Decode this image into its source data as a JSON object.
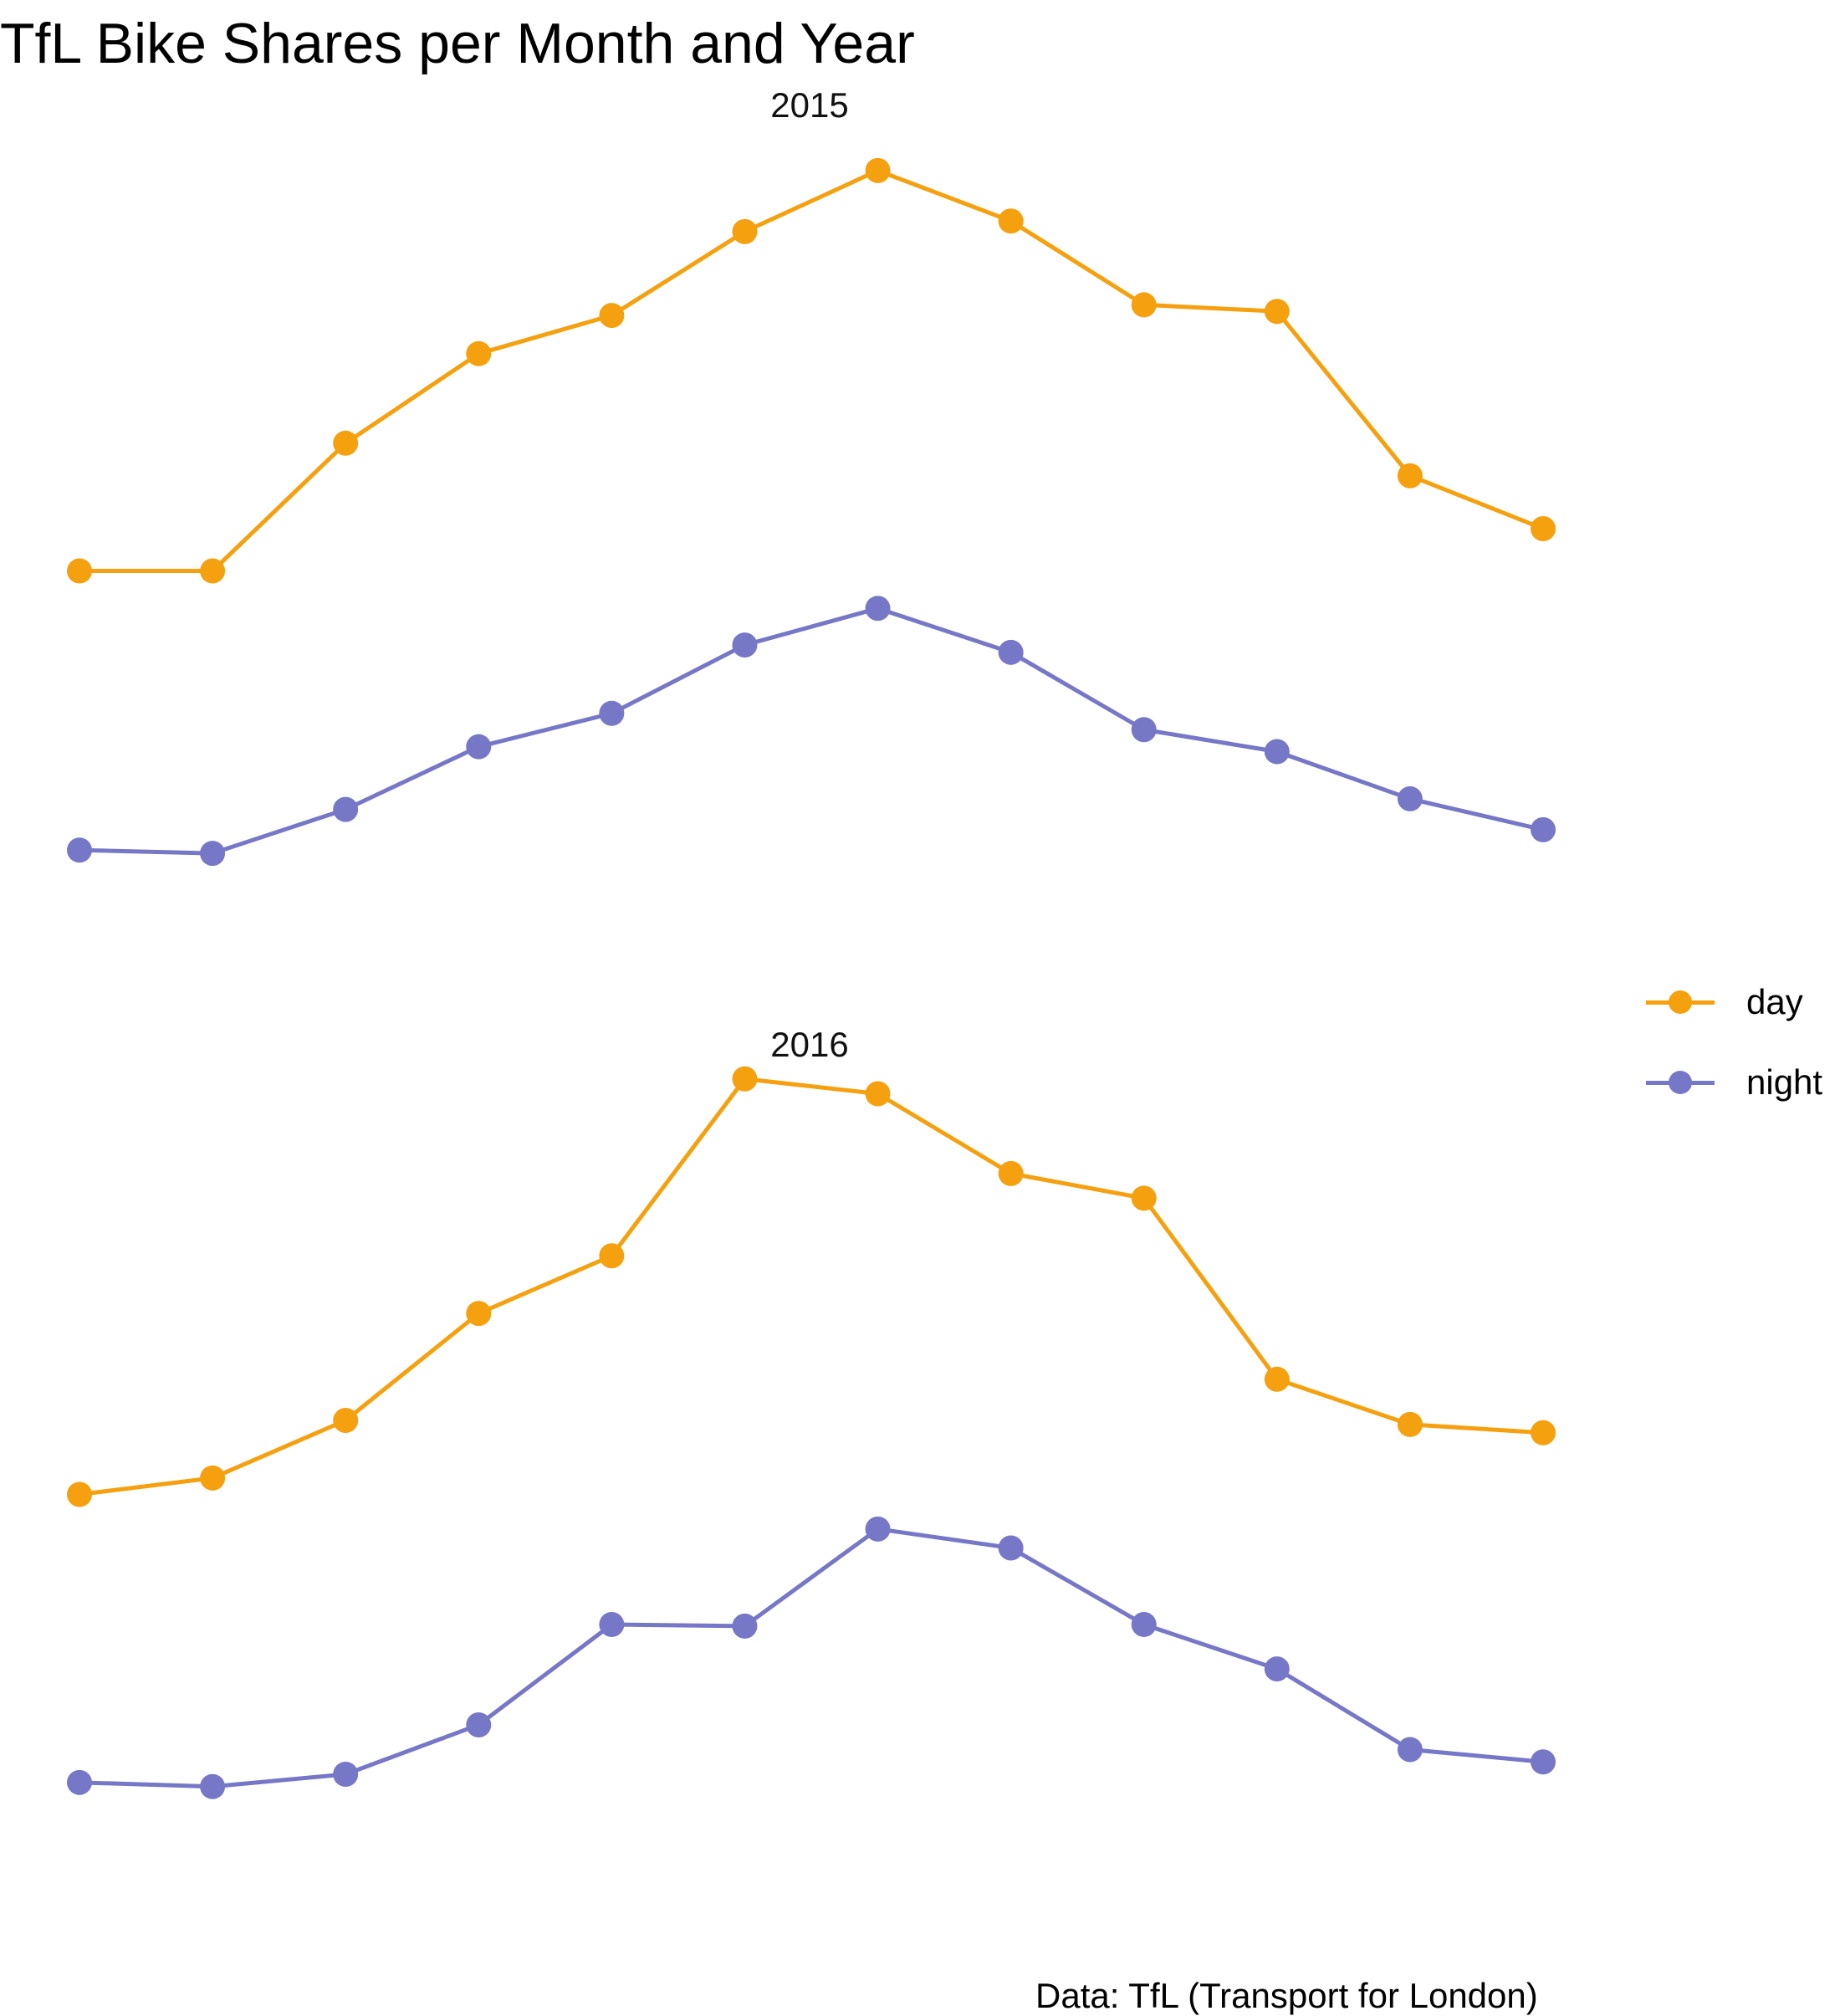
{
  "chart_data": {
    "type": "line",
    "title": "TfL Bike Shares per Month and Year",
    "caption": "Data: TfL (Transport for London)",
    "xlabel": "",
    "ylabel": "",
    "legend_position": "right",
    "grid": false,
    "axes_visible": false,
    "colors": {
      "day": "#F5A00F",
      "night": "#7777C8"
    },
    "facets": [
      {
        "label": "2015",
        "months": [
          1,
          2,
          3,
          4,
          5,
          6,
          7,
          8,
          9,
          10,
          11,
          12
        ],
        "series": [
          {
            "name": "day",
            "values": [
              388,
              388,
              545,
              655,
              702,
              805,
              880,
              818,
              715,
              707,
              505,
              440
            ]
          },
          {
            "name": "night",
            "values": [
              45,
              41,
              95,
              172,
              213,
              297,
              342,
              288,
              193,
              166,
              108,
              70
            ]
          }
        ]
      },
      {
        "label": "2016",
        "months": [
          1,
          2,
          3,
          4,
          5,
          6,
          7,
          8,
          9,
          10,
          11,
          12
        ],
        "series": [
          {
            "name": "day",
            "values": [
              400,
              420,
              490,
              620,
              690,
              905,
              887,
              790,
              760,
              540,
              485,
              475
            ]
          },
          {
            "name": "night",
            "values": [
              50,
              45,
              60,
              120,
              242,
              240,
              358,
              335,
              242,
              188,
              90,
              75
            ]
          }
        ]
      }
    ]
  },
  "legend": {
    "items": [
      {
        "label": "day",
        "color": "#F5A00F"
      },
      {
        "label": "night",
        "color": "#7777C8"
      }
    ]
  }
}
